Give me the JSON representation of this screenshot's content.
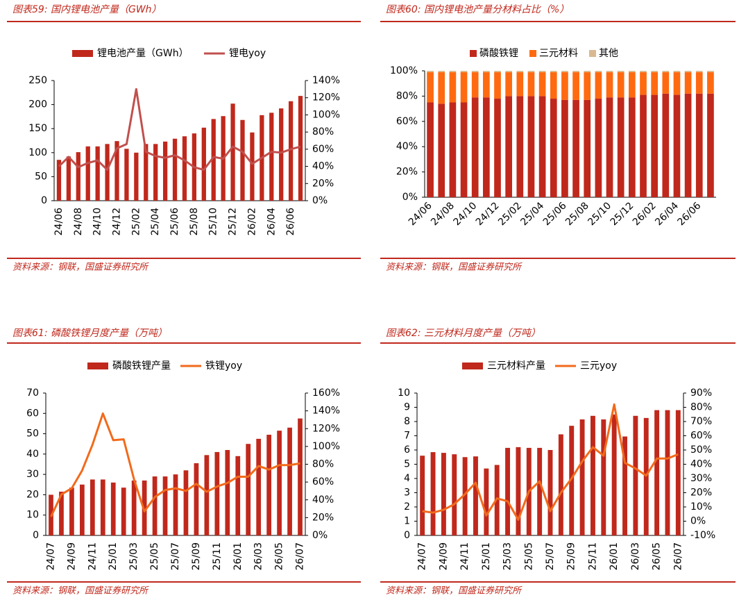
{
  "chart_data": [
    {
      "type": "combo",
      "title": "图表59:  国内锂电池产量（GWh）",
      "source": "资料来源：钢联，国盛证券研究所",
      "categories": [
        "24/06",
        null,
        "24/08",
        null,
        "24/10",
        null,
        "24/12",
        null,
        "25/02",
        null,
        "25/04",
        null,
        "25/06",
        null,
        "25/08",
        null,
        "25/10",
        null,
        "25/12",
        null,
        "26/02",
        null,
        "26/04",
        null,
        "26/06",
        null
      ],
      "series": [
        {
          "name": "锂电池产量（GWh）",
          "color": "#c0281c",
          "values": [
            85,
            92,
            101,
            113,
            113,
            118,
            124,
            108,
            100,
            118,
            118,
            123,
            129,
            134,
            140,
            152,
            170,
            176,
            202,
            168,
            142,
            178,
            183,
            192,
            207,
            218
          ]
        },
        {
          "name": "锂电yoy",
          "color": "#c0504d",
          "axis": "y2",
          "values": [
            40,
            51,
            39,
            44,
            47,
            36,
            61,
            66,
            130,
            57,
            52,
            50,
            53,
            47,
            39,
            36,
            51,
            49,
            63,
            57,
            43,
            50,
            57,
            56,
            60,
            63
          ]
        }
      ],
      "ylim": [
        0,
        250
      ],
      "yticks": [
        0,
        50,
        100,
        150,
        200,
        250
      ],
      "y2lim": [
        0,
        140
      ],
      "y2ticks": [
        {
          "value": 0,
          "label": "0%"
        },
        {
          "value": 20,
          "label": "20%"
        },
        {
          "value": 40,
          "label": "40%"
        },
        {
          "value": 60,
          "label": "60%"
        },
        {
          "value": 80,
          "label": "80%"
        },
        {
          "value": 100,
          "label": "100%"
        },
        {
          "value": 120,
          "label": "120%"
        },
        {
          "value": 140,
          "label": "140%"
        }
      ]
    },
    {
      "type": "stacked",
      "title": "图表60:  国内锂电池产量分材料占比（%）",
      "source": "资料来源：钢联，国盛证券研究所",
      "categories": [
        "24/06",
        null,
        "24/08",
        null,
        "24/10",
        null,
        "24/12",
        null,
        "25/02",
        null,
        "25/04",
        null,
        "25/06",
        null,
        "25/08",
        null,
        "25/10",
        null,
        "25/12",
        null,
        "26/02",
        null,
        "26/04",
        null,
        "26/06",
        null
      ],
      "series": [
        {
          "name": "磷酸铁锂",
          "color": "#c0281c",
          "values": [
            75,
            74,
            75,
            75,
            79,
            79,
            78,
            80,
            80,
            80,
            80,
            78,
            77,
            77,
            77,
            78,
            79,
            79,
            79,
            81,
            81,
            82,
            81,
            82,
            82,
            82
          ]
        },
        {
          "name": "三元材料",
          "color": "#ff6a10",
          "values": [
            24,
            25,
            24,
            24,
            20,
            20,
            21,
            19,
            19,
            19,
            19,
            21,
            22,
            22,
            22,
            21,
            20,
            20,
            20,
            18,
            18,
            17,
            18,
            17,
            17,
            17
          ]
        },
        {
          "name": "其他",
          "color": "#d9b991",
          "values": [
            1,
            1,
            1,
            1,
            1,
            1,
            1,
            1,
            1,
            1,
            1,
            1,
            1,
            1,
            1,
            1,
            1,
            1,
            1,
            1,
            1,
            1,
            1,
            1,
            1,
            1
          ]
        }
      ],
      "ylim": [
        0,
        100
      ],
      "yticks": [
        {
          "value": 0,
          "label": "0%"
        },
        {
          "value": 20,
          "label": "20%"
        },
        {
          "value": 40,
          "label": "40%"
        },
        {
          "value": 60,
          "label": "60%"
        },
        {
          "value": 80,
          "label": "80%"
        },
        {
          "value": 100,
          "label": "100%"
        }
      ]
    },
    {
      "type": "combo",
      "title": "图表61:  磷酸铁锂月度产量（万吨）",
      "source": "资料来源：钢联，国盛证券研究所",
      "categories": [
        "24/07",
        null,
        "24/09",
        null,
        "24/11",
        null,
        "25/01",
        null,
        "25/03",
        null,
        "25/05",
        null,
        "25/07",
        null,
        "25/09",
        null,
        "25/11",
        null,
        "26/01",
        null,
        "26/03",
        null,
        "26/05",
        null,
        "26/07"
      ],
      "series": [
        {
          "name": "磷酸铁锂产量",
          "color": "#c0281c",
          "values": [
            20,
            21.5,
            23.5,
            25,
            27.5,
            27.5,
            26,
            23.5,
            27,
            27,
            29,
            29,
            30,
            32,
            35.5,
            39.5,
            41,
            42,
            39,
            45,
            47.5,
            49.5,
            51.5,
            53,
            57.5
          ]
        },
        {
          "name": "铁锂yoy",
          "color": "#f26a1b",
          "axis": "y2",
          "values": [
            21,
            46,
            53,
            73,
            102,
            137,
            107,
            108,
            63,
            27,
            43,
            51,
            53,
            50,
            58,
            49,
            55,
            59,
            66,
            66,
            78,
            74,
            79,
            79,
            81
          ]
        }
      ],
      "ylim": [
        0,
        70
      ],
      "yticks": [
        0,
        10,
        20,
        30,
        40,
        50,
        60,
        70
      ],
      "y2lim": [
        0,
        160
      ],
      "y2ticks": [
        {
          "value": 0,
          "label": "0%"
        },
        {
          "value": 20,
          "label": "20%"
        },
        {
          "value": 40,
          "label": "40%"
        },
        {
          "value": 60,
          "label": "60%"
        },
        {
          "value": 80,
          "label": "80%"
        },
        {
          "value": 100,
          "label": "100%"
        },
        {
          "value": 120,
          "label": "120%"
        },
        {
          "value": 140,
          "label": "140%"
        },
        {
          "value": 160,
          "label": "160%"
        }
      ]
    },
    {
      "type": "combo",
      "title": "图表62:  三元材料月度产量（万吨）",
      "source": "资料来源：钢联，国盛证券研究所",
      "categories": [
        "24/07",
        null,
        "24/09",
        null,
        "24/11",
        null,
        "25/01",
        null,
        "25/03",
        null,
        "25/05",
        null,
        "25/07",
        null,
        "25/09",
        null,
        "25/11",
        null,
        "26/01",
        null,
        "26/03",
        null,
        "26/05",
        null,
        "26/07"
      ],
      "series": [
        {
          "name": "三元材料产量",
          "color": "#c0281c",
          "values": [
            5.6,
            5.85,
            5.8,
            5.7,
            5.5,
            5.55,
            4.7,
            4.95,
            6.15,
            6.2,
            6.15,
            6.15,
            6.0,
            7.1,
            7.7,
            8.15,
            8.4,
            8.15,
            8.5,
            6.95,
            8.4,
            8.25,
            8.8,
            8.8,
            8.8
          ]
        },
        {
          "name": "三元yoy",
          "color": "#f26a1b",
          "axis": "y2",
          "values": [
            7,
            6,
            8,
            12,
            19,
            27,
            4,
            16,
            14,
            1,
            21,
            28,
            7,
            20,
            30,
            42,
            52,
            46,
            82,
            41,
            37,
            32,
            44,
            44,
            47
          ]
        }
      ],
      "ylim": [
        0,
        10
      ],
      "yticks": [
        0,
        1,
        2,
        3,
        4,
        5,
        6,
        7,
        8,
        9,
        10
      ],
      "y2lim": [
        -10,
        90
      ],
      "y2ticks": [
        {
          "value": -10,
          "label": "-10%"
        },
        {
          "value": 0,
          "label": "0%"
        },
        {
          "value": 10,
          "label": "10%"
        },
        {
          "value": 20,
          "label": "20%"
        },
        {
          "value": 30,
          "label": "30%"
        },
        {
          "value": 40,
          "label": "40%"
        },
        {
          "value": 50,
          "label": "50%"
        },
        {
          "value": 60,
          "label": "60%"
        },
        {
          "value": 70,
          "label": "70%"
        },
        {
          "value": 80,
          "label": "80%"
        },
        {
          "value": 90,
          "label": "90%"
        }
      ]
    }
  ]
}
